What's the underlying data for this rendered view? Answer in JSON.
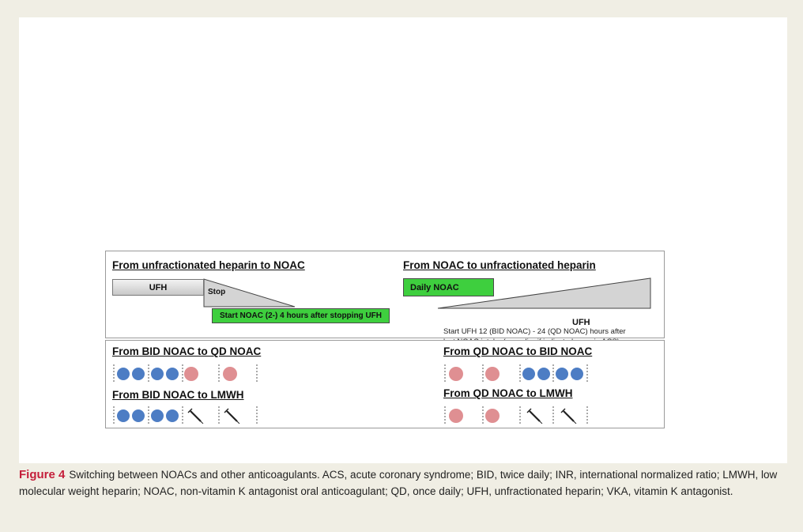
{
  "panels": {
    "heparin_to_noac": {
      "title": "From unfractionated heparin to NOAC",
      "ufh_label": "UFH",
      "stop_label": "Stop",
      "start_label": "Start NOAC (2-) 4 hours after stopping UFH"
    },
    "noac_to_heparin": {
      "title": "From NOAC to unfractionated heparin",
      "daily_label": "Daily NOAC",
      "ufh_label": "UFH",
      "note_line1": "Start UFH 12 (BID NOAC) - 24 (QD NOAC) hours after",
      "note_line2": "last NOAC intake (or earlier if indicated, e.g., in ACS)"
    },
    "bid_to_qd": {
      "title": "From BID NOAC to QD NOAC"
    },
    "bid_to_lmwh": {
      "title": "From BID NOAC to LMWH"
    },
    "qd_to_bid": {
      "title": "From QD NOAC to BID NOAC"
    },
    "qd_to_lmwh": {
      "title": "From QD NOAC to LMWH"
    }
  },
  "colors": {
    "bid_dot": "#4d7dc4",
    "qd_dot": "#df8f92",
    "green_box": "#3ecf3e",
    "caption_label": "#c41e3a"
  },
  "icons": {
    "bid_dose": "blue-circle",
    "qd_dose": "pink-circle",
    "lmwh_dose": "syringe-icon"
  },
  "caption": {
    "label": "Figure 4",
    "text": "Switching between NOACs and other anticoagulants. ACS, acute coronary syndrome; BID, twice daily; INR, international normalized ratio; LMWH, low molecular weight heparin; NOAC, non-vitamin K antagonist oral anticoagulant; QD, once daily; UFH, unfractionated heparin; VKA, vitamin K antagonist."
  }
}
